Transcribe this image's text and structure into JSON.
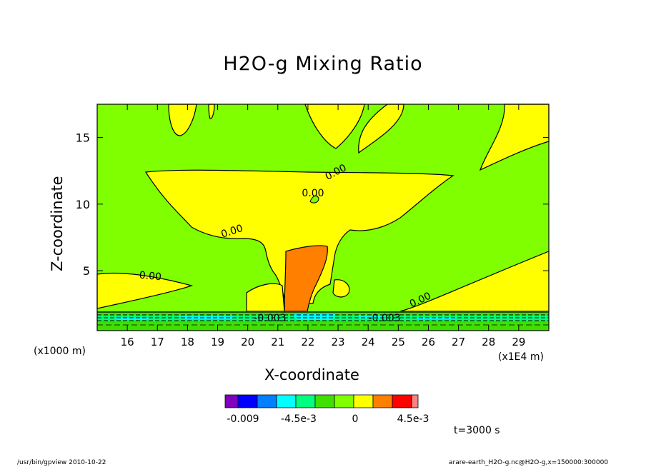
{
  "chart_data": {
    "type": "heatmap",
    "title": "H2O-g Mixing Ratio",
    "xlabel": "X-coordinate",
    "ylabel": "Z-coordinate",
    "x_unit": "(x1000 m)",
    "x_exponent": "(x1E4 m)",
    "x_ticks": [
      "16",
      "17",
      "18",
      "19",
      "20",
      "21",
      "22",
      "23",
      "24",
      "25",
      "26",
      "27",
      "28",
      "29"
    ],
    "y_ticks": [
      "5",
      "10",
      "15"
    ],
    "xlim": [
      15.0,
      30.0
    ],
    "ylim": [
      0.5,
      17.5
    ],
    "contour_labels": [
      "0.00",
      "0.00",
      "0.00",
      "0.00",
      "0.00",
      "-0.003",
      "-0.003"
    ],
    "colorbar": {
      "colors": [
        "#7f00bf",
        "#0000ff",
        "#007fff",
        "#00ffff",
        "#00ff7f",
        "#3fdf00",
        "#7fff00",
        "#ffff00",
        "#ff7f00",
        "#ff0000",
        "#ff8080"
      ],
      "tick_labels": [
        "-0.009",
        "-4.5e-3",
        "0",
        "4.5e-3"
      ]
    },
    "time_label": "t=3000 s"
  },
  "footer": {
    "left": "/usr/bin/gpview  2010-10-22",
    "right": "arare-earth_H2O-g.nc@H2O-g,x=150000:300000"
  }
}
